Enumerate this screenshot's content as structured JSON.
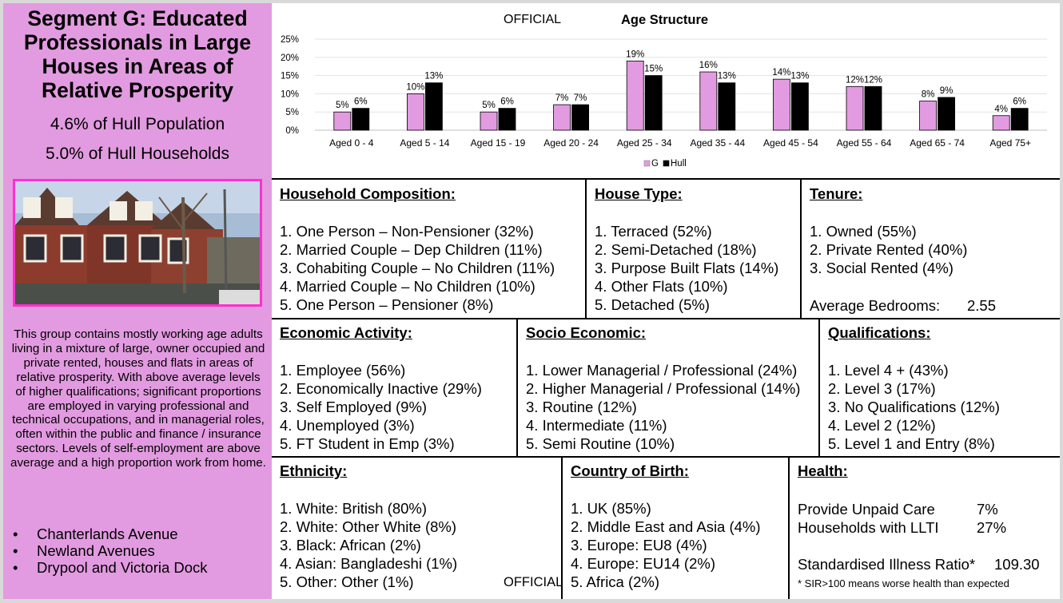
{
  "segment": {
    "title": "Segment G: Educated Professionals in Large Houses in Areas of Relative Prosperity",
    "population_share": "4.6% of Hull Population",
    "household_share": "5.0% of Hull Households",
    "description": "This group contains mostly working age adults living in a mixture of large, owner occupied and private rented, houses and flats in areas of relative prosperity. With above average levels of higher qualifications; significant proportions are employed in varying professional and technical occupations, and in managerial roles, often within the public and finance / insurance sectors. Levels of self-employment are above average and a high proportion work from home.",
    "areas": [
      "Chanterlands Avenue",
      "Newland Avenues",
      "Drypool and Victoria Dock"
    ]
  },
  "header": {
    "official_label": "OFFICIAL"
  },
  "chart_data": {
    "type": "bar",
    "title": "Age Structure",
    "categories": [
      "Aged 0 - 4",
      "Aged 5 - 14",
      "Aged 15 - 19",
      "Aged 20 - 24",
      "Aged 25 - 34",
      "Aged 35 - 44",
      "Aged 45 - 54",
      "Aged 55 - 64",
      "Aged 65 - 74",
      "Aged 75+"
    ],
    "series": [
      {
        "name": "G",
        "color": "#e29be0",
        "values": [
          5,
          10,
          5,
          7,
          19,
          16,
          14,
          12,
          8,
          4
        ]
      },
      {
        "name": "Hull",
        "color": "#000000",
        "values": [
          6,
          13,
          6,
          7,
          15,
          13,
          13,
          12,
          9,
          6
        ]
      }
    ],
    "yticks": [
      "0%",
      "5%",
      "10%",
      "15%",
      "20%",
      "25%"
    ],
    "ylim": [
      0,
      25
    ],
    "legend_position": "bottom",
    "grid": true
  },
  "household_composition": {
    "title": "Household Composition:",
    "items": [
      "1. One Person – Non-Pensioner (32%)",
      "2. Married Couple – Dep Children (11%)",
      "3. Cohabiting Couple – No Children (11%)",
      "4. Married Couple – No Children (10%)",
      "5. One Person – Pensioner (8%)"
    ]
  },
  "house_type": {
    "title": "House Type:",
    "items": [
      "1. Terraced (52%)",
      "2. Semi-Detached (18%)",
      "3. Purpose Built Flats (14%)",
      "4. Other Flats (10%)",
      "5. Detached (5%)"
    ]
  },
  "tenure": {
    "title": "Tenure:",
    "items": [
      "1. Owned (55%)",
      "2. Private Rented (40%)",
      "3. Social Rented (4%)"
    ],
    "bedrooms_label": "Average Bedrooms:",
    "bedrooms_value": "2.55"
  },
  "economic_activity": {
    "title": "Economic Activity:",
    "items": [
      "1. Employee (56%)",
      "2. Economically Inactive (29%)",
      "3. Self Employed (9%)",
      "4. Unemployed (3%)",
      "5. FT Student in Emp (3%)"
    ]
  },
  "socio_economic": {
    "title": "Socio Economic:",
    "items": [
      "1. Lower Managerial / Professional (24%)",
      "2. Higher Managerial / Professional (14%)",
      "3. Routine (12%)",
      "4. Intermediate (11%)",
      "5. Semi Routine (10%)"
    ]
  },
  "qualifications": {
    "title": "Qualifications:",
    "items": [
      "1. Level 4 + (43%)",
      "2. Level 3 (17%)",
      "3. No Qualifications (12%)",
      "4. Level 2 (12%)",
      "5. Level 1 and Entry (8%)"
    ]
  },
  "ethnicity": {
    "title": "Ethnicity:",
    "items": [
      "1. White: British (80%)",
      "2. White: Other White (8%)",
      "3. Black: African (2%)",
      "4. Asian: Bangladeshi (1%)",
      "5. Other: Other (1%)"
    ]
  },
  "country_of_birth": {
    "title": "Country of Birth:",
    "items": [
      "1. UK (85%)",
      "2. Middle East and Asia (4%)",
      "3. Europe: EU8 (4%)",
      "4. Europe: EU14 (2%)",
      "5. Africa (2%)"
    ]
  },
  "health": {
    "title": "Health:",
    "unpaid_care_label": "Provide Unpaid Care",
    "unpaid_care_value": "7%",
    "llti_label": "Households with LLTI",
    "llti_value": "27%",
    "sir_label": "Standardised Illness Ratio*",
    "sir_value": "109.30",
    "note": "* SIR>100 means worse health than expected"
  }
}
